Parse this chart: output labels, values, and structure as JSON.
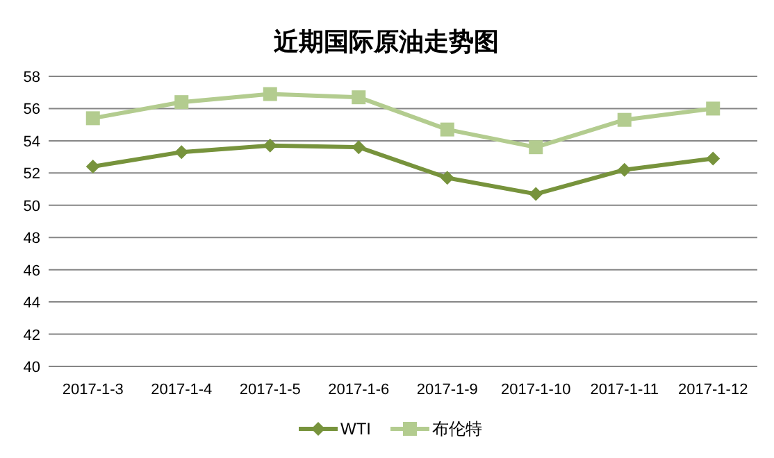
{
  "chart_data": {
    "type": "line",
    "title": "近期国际原油走势图",
    "categories": [
      "2017-1-3",
      "2017-1-4",
      "2017-1-5",
      "2017-1-6",
      "2017-1-9",
      "2017-1-10",
      "2017-1-11",
      "2017-1-12"
    ],
    "series": [
      {
        "name": "WTI",
        "color": "#77933c",
        "marker": "diamond",
        "values": [
          52.4,
          53.3,
          53.7,
          53.6,
          51.7,
          50.7,
          52.2,
          52.9
        ]
      },
      {
        "name": "布伦特",
        "color": "#b3cc8f",
        "marker": "square",
        "values": [
          55.4,
          56.4,
          56.9,
          56.7,
          54.7,
          53.6,
          55.3,
          56.0
        ]
      }
    ],
    "ylim": [
      40,
      58
    ],
    "yticks": [
      40,
      42,
      44,
      46,
      48,
      50,
      52,
      54,
      56,
      58
    ],
    "grid": "y",
    "legend": "bottom"
  }
}
